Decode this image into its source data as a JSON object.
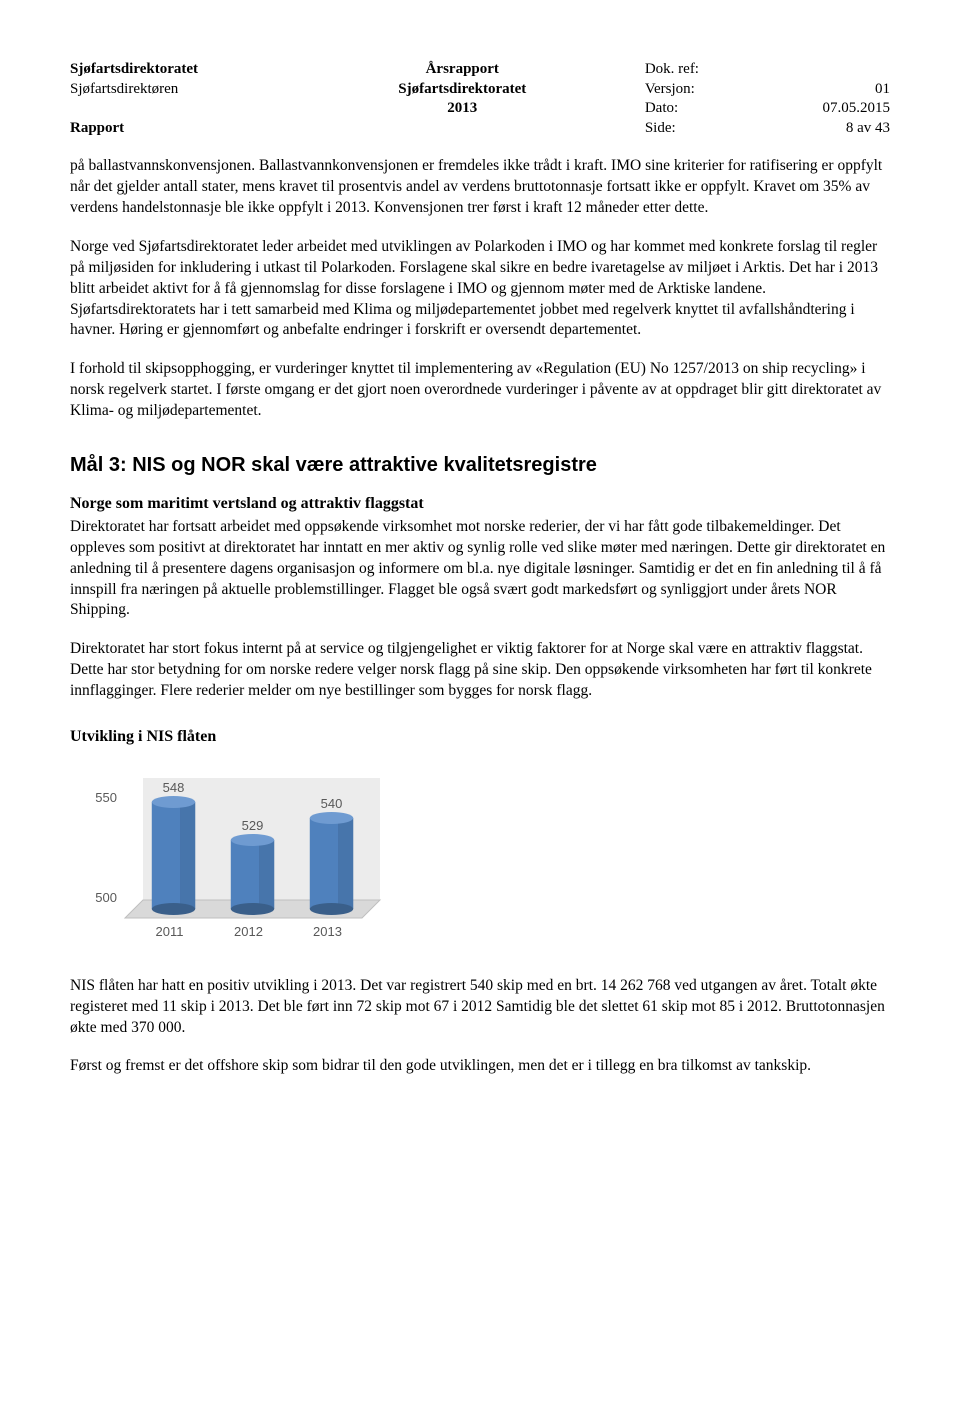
{
  "header": {
    "org": "Sjøfartsdirektoratet",
    "sub": "Sjøfartsdirektøren",
    "rapport": "Rapport",
    "center_top": "Årsrapport",
    "center_mid": "Sjøfartsdirektoratet",
    "center_year": "2013",
    "right": {
      "dokref_label": "Dok. ref:",
      "dokref_val": "",
      "versjon_label": "Versjon:",
      "versjon_val": "01",
      "dato_label": "Dato:",
      "dato_val": "07.05.2015",
      "side_label": "Side:",
      "side_val": "8 av 43"
    }
  },
  "p1": "på ballastvannskonvensjonen. Ballastvannkonvensjonen er fremdeles ikke trådt i kraft. IMO sine kriterier for ratifisering er oppfylt når det gjelder antall stater, mens kravet til prosentvis andel av verdens bruttotonnasje fortsatt ikke er oppfylt. Kravet om 35% av verdens handelstonnasje ble ikke oppfylt i 2013. Konvensjonen trer først i kraft 12 måneder etter dette.",
  "p2": "Norge ved Sjøfartsdirektoratet leder arbeidet med utviklingen av Polarkoden i IMO og har kommet med konkrete forslag til regler på miljøsiden for inkludering i utkast til Polarkoden. Forslagene skal sikre en bedre ivaretagelse av miljøet i Arktis. Det har i 2013 blitt arbeidet aktivt for å få gjennomslag for disse forslagene i IMO og gjennom møter med de Arktiske landene. Sjøfartsdirektoratets har i tett samarbeid med Klima og miljødepartementet jobbet med regelverk knyttet til avfallshåndtering i havner. Høring er gjennomført og anbefalte endringer i forskrift er oversendt departementet.",
  "p3": "I forhold til skipsopphogging, er vurderinger knyttet til implementering av «Regulation (EU) No 1257/2013 on ship recycling» i norsk regelverk startet. I første omgang er det gjort noen overordnede vurderinger i påvente av at oppdraget blir gitt direktoratet av Klima- og miljødepartementet.",
  "section_title": "Mål 3: NIS og NOR skal være attraktive kvalitetsregistre",
  "sub1_title": "Norge som maritimt vertsland og attraktiv flaggstat",
  "p4": "Direktoratet har fortsatt arbeidet med oppsøkende virksomhet mot norske rederier, der vi har fått gode tilbakemeldinger. Det oppleves som positivt at direktoratet har inntatt en mer aktiv og synlig rolle ved slike møter med næringen. Dette gir direktoratet en anledning til å presentere dagens organisasjon og informere om bl.a. nye digitale løsninger. Samtidig er det en fin anledning til å få innspill fra næringen på aktuelle problemstillinger. Flagget ble også svært godt markedsført og synliggjort under årets NOR Shipping.",
  "p5": "Direktoratet har stort fokus internt på at service og tilgjengelighet er viktig faktorer for at Norge skal være en attraktiv flaggstat. Dette har stor betydning for om norske redere velger norsk flagg på sine skip. Den oppsøkende virksomheten har ført til konkrete innflagginger. Flere rederier melder om nye bestillinger som bygges for norsk flagg.",
  "chart_title": "Utvikling i NIS flåten",
  "chart": {
    "type": "bar-3d",
    "categories": [
      "2011",
      "2012",
      "2013"
    ],
    "values": [
      548,
      529,
      540
    ],
    "value_labels": [
      "548",
      "529",
      "540"
    ],
    "y_ticks": [
      500,
      550
    ],
    "y_tick_labels": [
      "500",
      "550"
    ],
    "ylim": [
      490,
      560
    ],
    "bar_fill": "#4f81bd",
    "bar_top": "#6f9bd1",
    "bar_side": "#3a5f8a",
    "floor_fill": "#d9d9d9",
    "floor_stroke": "#bfbfbf",
    "wall_fill": "#ececec",
    "text_color": "#595959",
    "label_fontsize": 13,
    "tick_fontsize": 13
  },
  "p6": "NIS flåten har hatt en positiv utvikling i 2013. Det var registrert 540 skip med en brt. 14 262 768 ved utgangen av året. Totalt økte registeret med 11 skip i 2013. Det ble ført inn 72 skip mot 67 i 2012 Samtidig ble det slettet 61 skip mot 85 i 2012. Bruttotonnasjen økte med 370 000.",
  "p7": "Først og fremst er det offshore skip som bidrar til den gode utviklingen, men det er i tillegg en bra tilkomst av tankskip."
}
